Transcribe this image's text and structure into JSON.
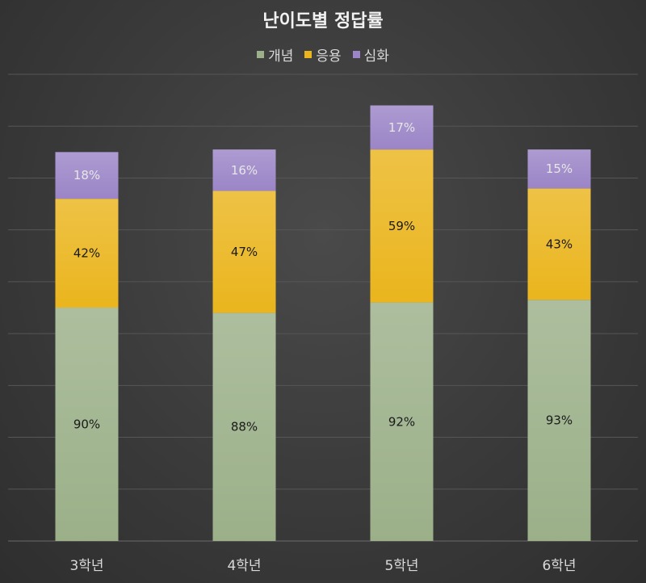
{
  "chart_data": {
    "type": "bar",
    "stacked": true,
    "title": "난이도별 정답률",
    "categories": [
      "3학년",
      "4학년",
      "5학년",
      "6학년"
    ],
    "series": [
      {
        "name": "개념",
        "values": [
          90,
          88,
          92,
          93
        ],
        "labels": [
          "90%",
          "88%",
          "92%",
          "93%"
        ],
        "color": "#9bb089"
      },
      {
        "name": "응용",
        "values": [
          42,
          47,
          59,
          43
        ],
        "labels": [
          "42%",
          "47%",
          "59%",
          "43%"
        ],
        "color": "#eab51d"
      },
      {
        "name": "심화",
        "values": [
          18,
          16,
          17,
          15
        ],
        "labels": [
          "18%",
          "16%",
          "17%",
          "15%"
        ],
        "color": "#9b85c7"
      }
    ],
    "ylim": [
      0,
      180
    ],
    "grid": true,
    "legend_position": "top"
  }
}
